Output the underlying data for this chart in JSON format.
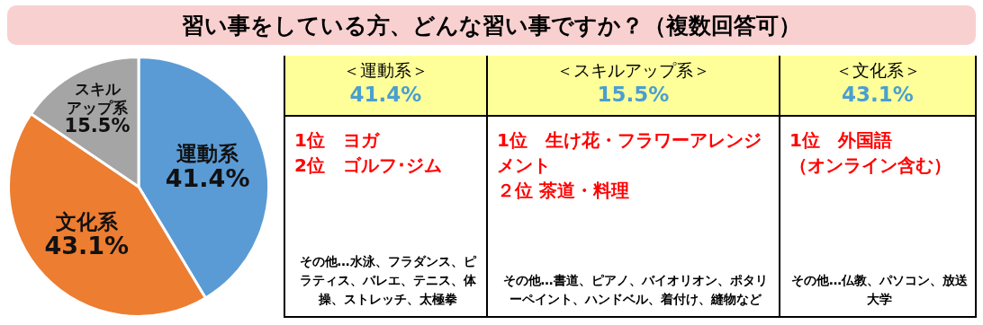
{
  "chart_data": [
    {
      "type": "pie",
      "title": "習い事をしている方、どんな習い事ですか？（複数回答可）",
      "categories": [
        "運動系",
        "文化系",
        "スキルアップ系"
      ],
      "values": [
        41.4,
        43.1,
        15.5
      ],
      "colors": [
        "#5b9bd5",
        "#ed7d31",
        "#a5a5a5"
      ],
      "value_labels": [
        "41.4%",
        "43.1%",
        "15.5%"
      ]
    },
    {
      "type": "other",
      "title": "＜運動系＞",
      "subtitle": "41.4%",
      "annotations": [
        "1位　ヨガ",
        "2位　ゴルフ･ジム",
        "その他…水泳、フラダンス、ピラティス、バレエ、テニス、体操、ストレッチ、太極拳"
      ]
    },
    {
      "type": "other",
      "title": "＜スキルアップ系＞",
      "subtitle": "15.5%",
      "annotations": [
        "1位　生け花・フラワーアレンジメント",
        "２位 茶道・料理",
        "その他…書道、ピアノ、バイオリオン、ポタリーペイント、ハンドベル、着付け、縫物など"
      ]
    },
    {
      "type": "other",
      "title": "＜文化系＞",
      "subtitle": "43.1%",
      "annotations": [
        "1位　外国語",
        "（オンライン含む）",
        "その他…仏教、パソコン、放送大学"
      ]
    }
  ]
}
